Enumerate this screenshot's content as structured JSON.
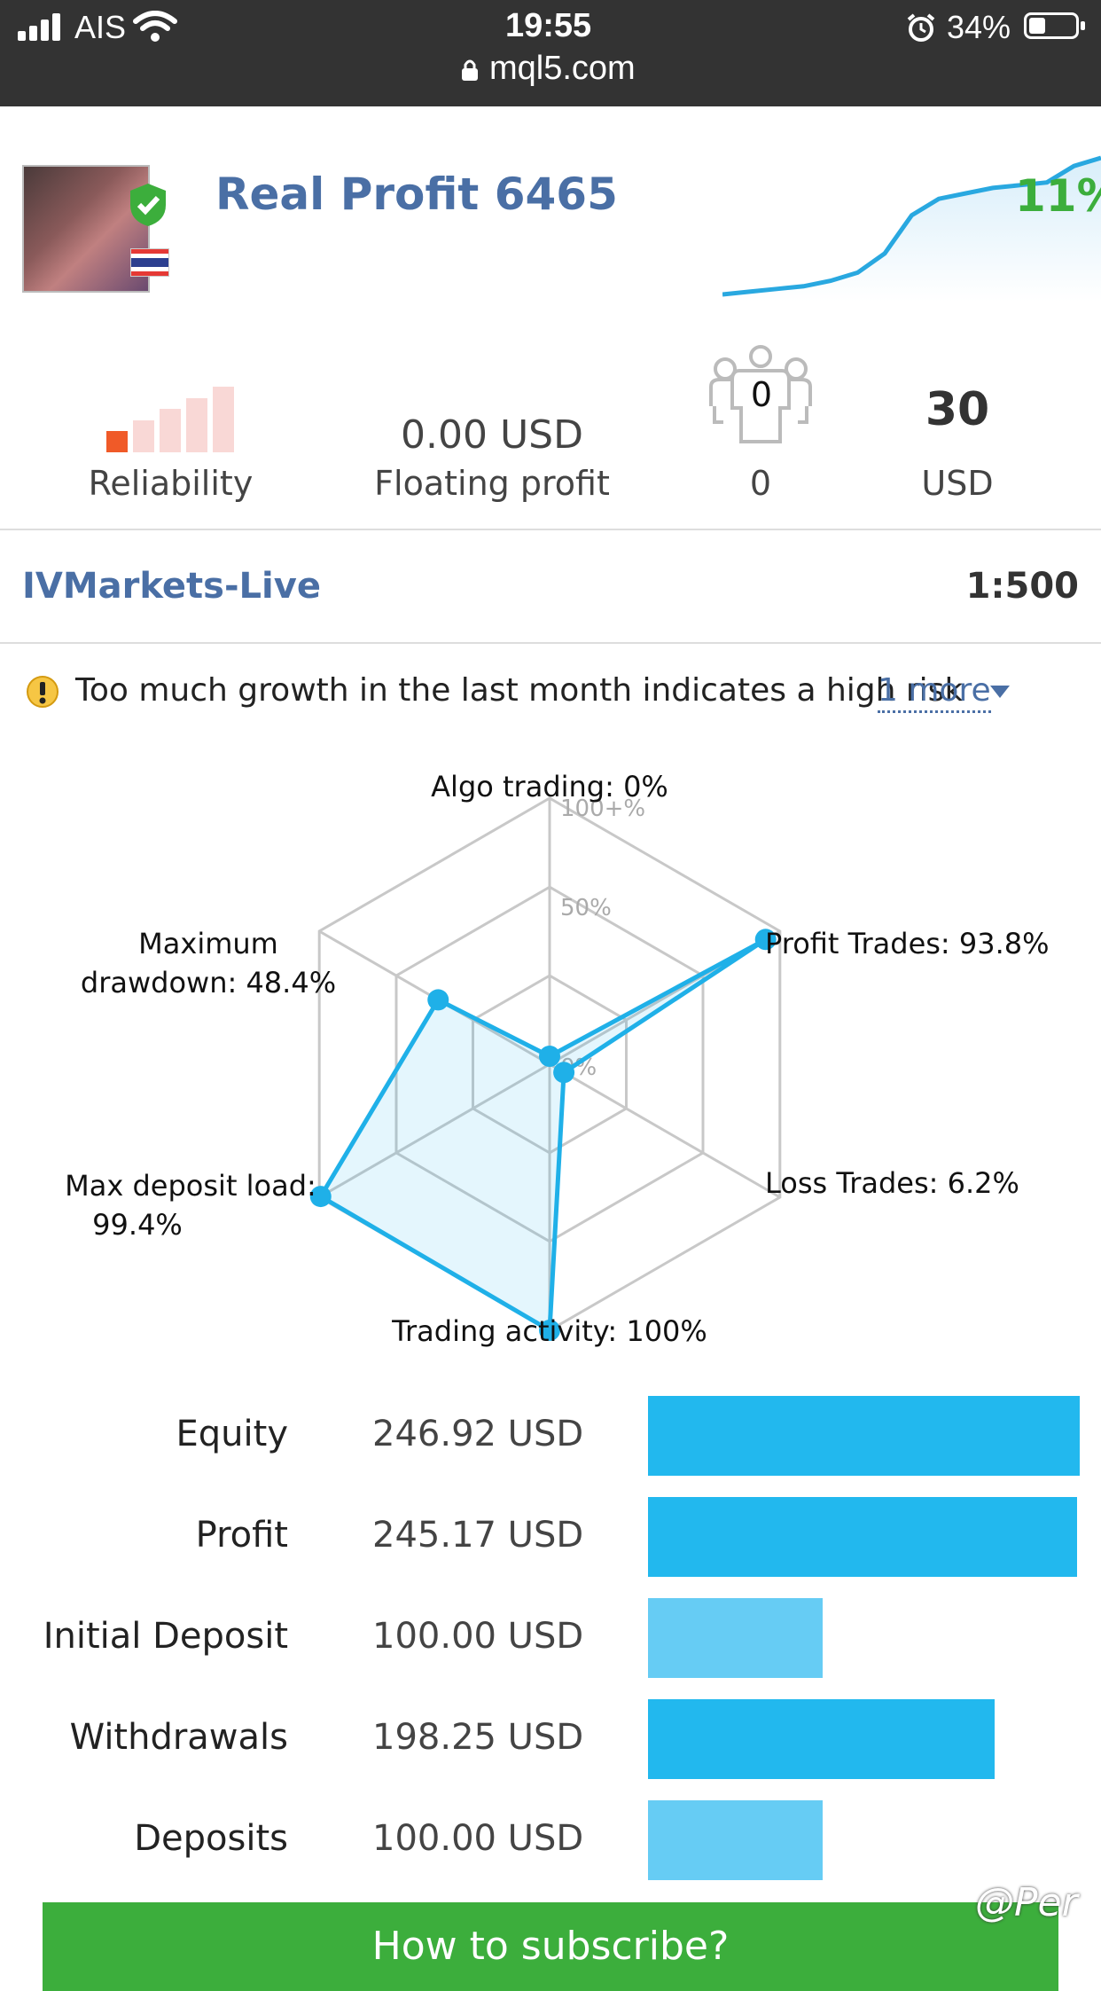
{
  "status_bar": {
    "carrier": "AIS",
    "time": "19:55",
    "url": "mql5.com",
    "battery": "34%"
  },
  "signal": {
    "title": "Real Profit 6465",
    "growth": "11%",
    "broker": "IVMarkets-Live",
    "leverage": "1:500",
    "sparkline": [
      0,
      2,
      4,
      6,
      10,
      16,
      30,
      58,
      70,
      74,
      78,
      80,
      82,
      94,
      100
    ]
  },
  "stats": {
    "reliability_label": "Reliability",
    "reliability_level": 1,
    "reliability_max": 5,
    "floating_value": "0.00 USD",
    "floating_label": "Floating profit",
    "subscribers_icon_value": "0",
    "subscribers_value": "0",
    "price_value": "30",
    "price_label": "USD"
  },
  "warning": {
    "text": "Too much growth in the last month indicates a high risk",
    "more_link": "1 more"
  },
  "radar": {
    "labels": {
      "algo": "Algo trading: 0%",
      "profit": "Profit Trades: 93.8%",
      "loss": "Loss Trades: 6.2%",
      "activity": "Trading activity: 100%",
      "deposit_line1": "Max deposit load:",
      "deposit_line2": "99.4%",
      "drawdown_line1": "Maximum",
      "drawdown_line2": "drawdown: 48.4%"
    },
    "scale_labels": [
      "100+%",
      "50%",
      "0%"
    ]
  },
  "chart_data": {
    "type": "radar",
    "axes": [
      "Algo trading",
      "Profit Trades",
      "Loss Trades",
      "Trading activity",
      "Max deposit load",
      "Maximum drawdown"
    ],
    "values": [
      0,
      93.8,
      6.2,
      100,
      99.4,
      48.4
    ],
    "range": [
      0,
      100
    ]
  },
  "balances": {
    "rows": [
      {
        "label": "Equity",
        "value": "246.92 USD",
        "amount": 246.92,
        "color": "#22b8ee"
      },
      {
        "label": "Profit",
        "value": "245.17 USD",
        "amount": 245.17,
        "color": "#22b8ee"
      },
      {
        "label": "Initial Deposit",
        "value": "100.00 USD",
        "amount": 100.0,
        "color": "#66ccf4"
      },
      {
        "label": "Withdrawals",
        "value": "198.25 USD",
        "amount": 198.25,
        "color": "#22b8ee"
      },
      {
        "label": "Deposits",
        "value": "100.00 USD",
        "amount": 100.0,
        "color": "#66ccf4"
      }
    ],
    "max_amount": 246.92
  },
  "subscribe_button": "How to subscribe?",
  "watermark": "@Per"
}
